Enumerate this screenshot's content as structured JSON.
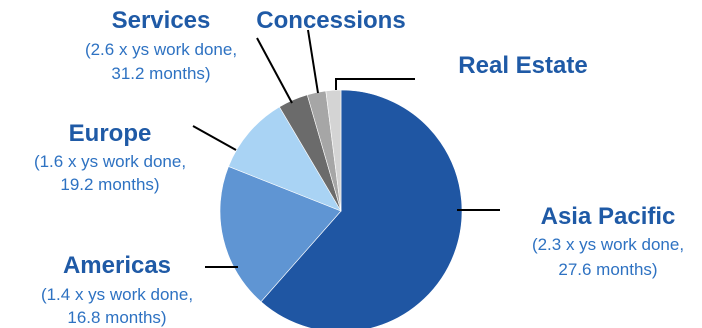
{
  "chart_data": {
    "type": "pie",
    "slices": [
      {
        "label": "Asia Pacific",
        "detail": [
          "(2.3 x ys work done,",
          "27.6 months)"
        ],
        "value": 61.5,
        "color": "#1f56a3"
      },
      {
        "label": "Americas",
        "detail": [
          "(1.4 x ys work done,",
          "16.8 months)"
        ],
        "value": 19.5,
        "color": "#5f95d3"
      },
      {
        "label": "Europe",
        "detail": [
          "(1.6 x ys work done,",
          "19.2 months)"
        ],
        "value": 10.5,
        "color": "#a9d3f4"
      },
      {
        "label": "Services",
        "detail": [
          "(2.6 x ys work done,",
          "31.2 months)"
        ],
        "value": 4.0,
        "color": "#6b6b6b"
      },
      {
        "label": "Concessions",
        "detail": [],
        "value": 2.5,
        "color": "#a6a6a6"
      },
      {
        "label": "Real Estate",
        "detail": [],
        "value": 2.0,
        "color": "#d4d4d4"
      }
    ]
  }
}
